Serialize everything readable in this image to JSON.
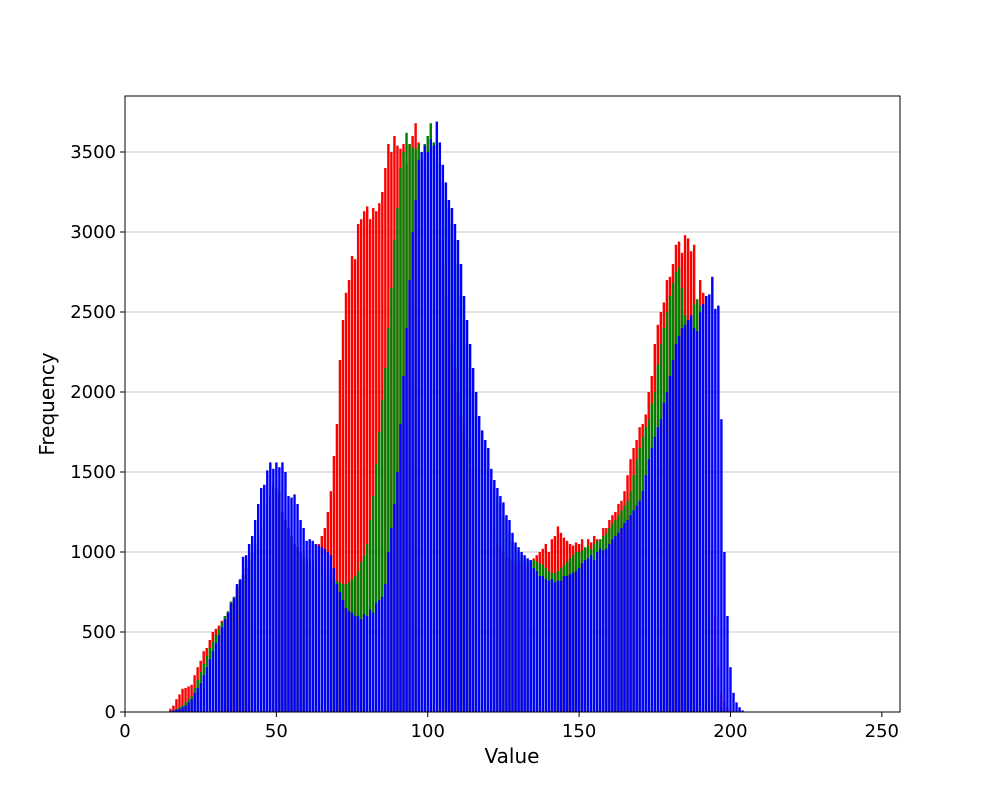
{
  "chart_data": {
    "type": "bar",
    "title": "",
    "xlabel": "Value",
    "ylabel": "Frequency",
    "xlim": [
      0,
      256
    ],
    "ylim": [
      0,
      3850
    ],
    "xticks": [
      0,
      50,
      100,
      150,
      200,
      250
    ],
    "yticks": [
      0,
      500,
      1000,
      1500,
      2000,
      2500,
      3000,
      3500
    ],
    "grid": "y",
    "legend": "none",
    "bin_start": 15,
    "series": [
      {
        "color": "#ff0000",
        "values": [
          20,
          40,
          80,
          110,
          145,
          150,
          160,
          170,
          230,
          280,
          320,
          380,
          400,
          450,
          500,
          520,
          540,
          570,
          600,
          620,
          690,
          720,
          780,
          820,
          860,
          900,
          950,
          1000,
          1050,
          1100,
          1150,
          1200,
          1300,
          1350,
          1420,
          1400,
          1380,
          1250,
          1200,
          1150,
          1100,
          1050,
          1030,
          1000,
          960,
          930,
          920,
          940,
          980,
          1050,
          1100,
          1150,
          1250,
          1380,
          1600,
          1800,
          2200,
          2450,
          2620,
          2700,
          2850,
          2830,
          3050,
          3080,
          3130,
          3160,
          3080,
          3150,
          3130,
          3180,
          3250,
          3400,
          3550,
          3500,
          3600,
          3540,
          3520,
          3550,
          3430,
          3550,
          3600,
          3680,
          3560,
          3460,
          3420,
          3310,
          3200,
          3150,
          3050,
          2950,
          2800,
          2600,
          2450,
          2300,
          2150,
          2000,
          1850,
          1760,
          1700,
          1650,
          1520,
          1450,
          1400,
          1350,
          1310,
          1230,
          1200,
          1120,
          1060,
          1030,
          1000,
          980,
          960,
          950,
          940,
          950,
          940,
          930,
          920,
          940,
          960,
          980,
          1000,
          1020,
          1050,
          1000,
          1080,
          1100,
          1160,
          1120,
          1090,
          1070,
          1050,
          1040,
          1060,
          1050,
          1080,
          1020,
          1080,
          1060,
          1100,
          1080,
          1050,
          1150,
          1150,
          1200,
          1230,
          1250,
          1300,
          1320,
          1380,
          1480,
          1580,
          1650,
          1700,
          1780,
          1800,
          1860,
          2000,
          2100,
          2300,
          2420,
          2500,
          2560,
          2700,
          2720,
          2800,
          2920,
          2940,
          2870,
          2980,
          2960,
          2880,
          2920,
          2540,
          2700,
          2620,
          2540,
          1830,
          1000,
          600,
          280,
          120,
          60,
          30,
          10
        ]
      },
      {
        "color": "#008000",
        "values": [
          5,
          10,
          20,
          30,
          40,
          60,
          80,
          100,
          150,
          200,
          250,
          300,
          350,
          400,
          440,
          480,
          520,
          560,
          600,
          630,
          690,
          720,
          780,
          820,
          860,
          900,
          950,
          1000,
          1050,
          1100,
          1150,
          1200,
          1300,
          1350,
          1420,
          1400,
          1380,
          1250,
          1200,
          1150,
          1100,
          1050,
          1030,
          1000,
          990,
          970,
          960,
          940,
          930,
          910,
          900,
          880,
          860,
          840,
          830,
          820,
          810,
          800,
          800,
          810,
          830,
          850,
          880,
          940,
          980,
          1050,
          1200,
          1350,
          1550,
          1750,
          1950,
          2150,
          2400,
          2650,
          2950,
          3150,
          3400,
          3500,
          3620,
          3550,
          3530,
          3520,
          3550,
          3430,
          3550,
          3600,
          3680,
          3560,
          3460,
          3420,
          3310,
          3200,
          3150,
          3050,
          2950,
          2800,
          2600,
          2450,
          2300,
          2150,
          2000,
          1850,
          1760,
          1700,
          1650,
          1520,
          1450,
          1400,
          1350,
          1310,
          1230,
          1200,
          1120,
          1060,
          1030,
          1000,
          980,
          960,
          950,
          940,
          950,
          940,
          930,
          920,
          900,
          880,
          870,
          870,
          880,
          900,
          920,
          940,
          960,
          980,
          1000,
          1000,
          1010,
          1030,
          1040,
          1020,
          1050,
          1070,
          1080,
          1100,
          1120,
          1150,
          1180,
          1200,
          1230,
          1260,
          1290,
          1320,
          1380,
          1480,
          1580,
          1650,
          1720,
          1780,
          1830,
          1930,
          2000,
          2170,
          2300,
          2400,
          2500,
          2600,
          2680,
          2750,
          2780,
          2650,
          2480,
          2420,
          2450,
          2550,
          2580,
          2540,
          1830,
          1000,
          600,
          280,
          120,
          60,
          30,
          10
        ]
      },
      {
        "color": "#0000ff",
        "values": [
          5,
          10,
          15,
          20,
          30,
          40,
          60,
          80,
          120,
          150,
          180,
          230,
          280,
          330,
          380,
          430,
          480,
          530,
          580,
          620,
          680,
          710,
          800,
          830,
          970,
          980,
          1050,
          1100,
          1200,
          1300,
          1400,
          1420,
          1510,
          1560,
          1520,
          1560,
          1530,
          1560,
          1500,
          1350,
          1340,
          1360,
          1300,
          1200,
          1150,
          1070,
          1080,
          1070,
          1050,
          1040,
          1030,
          1020,
          1000,
          980,
          900,
          800,
          750,
          700,
          650,
          630,
          620,
          600,
          600,
          580,
          610,
          600,
          640,
          620,
          680,
          700,
          720,
          800,
          1000,
          1150,
          1300,
          1500,
          1800,
          2100,
          2400,
          2700,
          3000,
          3200,
          3450,
          3500,
          3540,
          3500,
          3580,
          3540,
          3690,
          3560,
          3420,
          3310,
          3200,
          3150,
          3050,
          2950,
          2800,
          2600,
          2450,
          2300,
          2150,
          2000,
          1850,
          1760,
          1700,
          1650,
          1520,
          1450,
          1400,
          1350,
          1310,
          1230,
          1200,
          1120,
          1060,
          1030,
          1000,
          980,
          960,
          950,
          900,
          880,
          850,
          850,
          830,
          820,
          830,
          810,
          820,
          820,
          850,
          850,
          860,
          870,
          880,
          900,
          930,
          950,
          960,
          980,
          950,
          1000,
          1020,
          1010,
          1020,
          1050,
          1080,
          1100,
          1120,
          1150,
          1180,
          1200,
          1230,
          1260,
          1290,
          1320,
          1380,
          1480,
          1580,
          1650,
          1720,
          1780,
          1830,
          1930,
          2000,
          2100,
          2200,
          2300,
          2350,
          2400,
          2420,
          2450,
          2480,
          2400,
          2380,
          2500,
          2550,
          2600,
          2610,
          2720,
          2520,
          2540,
          1830,
          1000,
          600,
          280,
          120,
          60,
          30,
          10
        ]
      }
    ]
  }
}
